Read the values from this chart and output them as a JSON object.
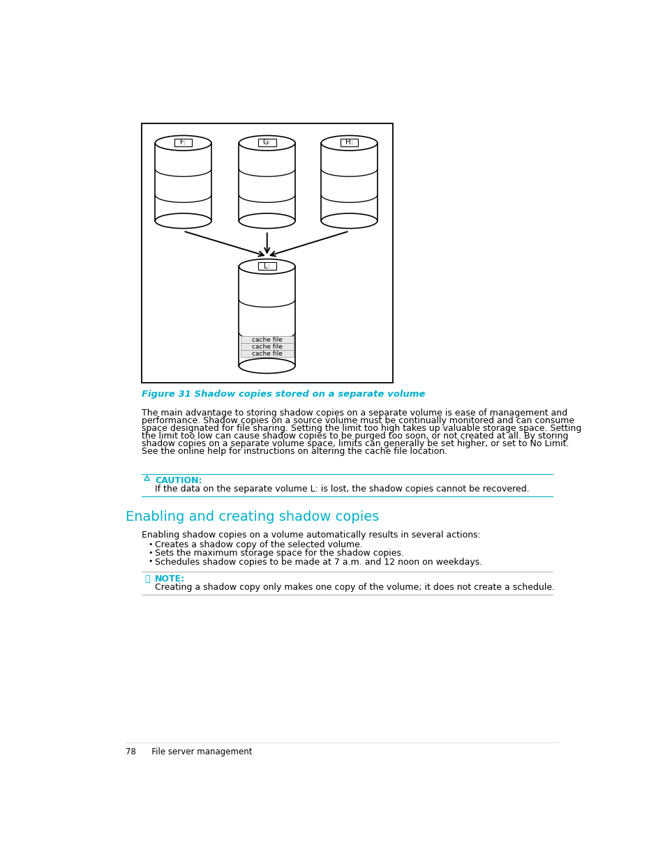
{
  "bg_color": "#ffffff",
  "figure_caption": "Figure 31 Shadow copies stored on a separate volume",
  "caption_color": "#00b0cc",
  "body_text_1_lines": [
    "The main advantage to storing shadow copies on a separate volume is ease of management and",
    "performance. Shadow copies on a source volume must be continually monitored and can consume",
    "space designated for file sharing. Setting the limit too high takes up valuable storage space. Setting",
    "the limit too low can cause shadow copies to be purged too soon, or not created at all. By storing",
    "shadow copies on a separate volume space, limits can generally be set higher, or set to No Limit.",
    "See the online help for instructions on altering the cache file location."
  ],
  "caution_label": "CAUTION:",
  "caution_text": "If the data on the separate volume L: is lost, the shadow copies cannot be recovered.",
  "section_heading": "Enabling and creating shadow copies",
  "section_heading_color": "#00b0cc",
  "section_intro": "Enabling shadow copies on a volume automatically results in several actions:",
  "bullet_points": [
    "Creates a shadow copy of the selected volume.",
    "Sets the maximum storage space for the shadow copies.",
    "Schedules shadow copies to be made at 7 a.m. and 12 noon on weekdays."
  ],
  "note_label": "NOTE:",
  "note_text": "Creating a shadow copy only makes one copy of the volume; it does not create a schedule.",
  "footer_text": "78      File server management",
  "caution_line_color": "#00b0cc",
  "note_line_color": "#aaaaaa",
  "body_font_size": 9.0,
  "caption_font_size": 9.5,
  "heading_font_size": 14,
  "footer_font_size": 8.5
}
